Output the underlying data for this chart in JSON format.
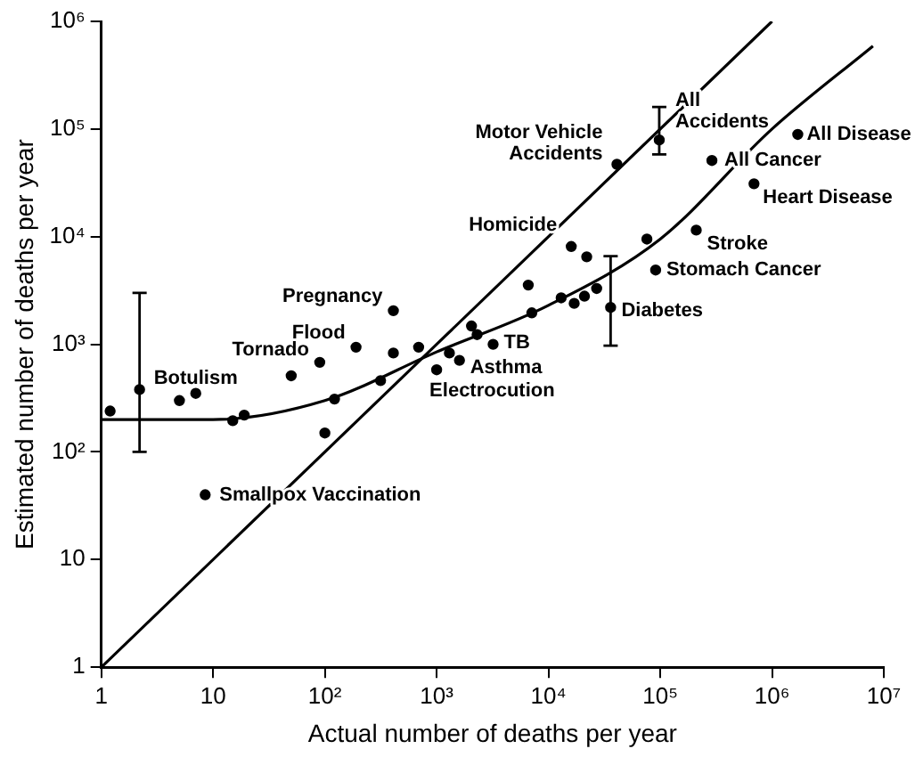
{
  "chart_data": {
    "type": "scatter",
    "xlabel": "Actual number of deaths per year",
    "ylabel": "Estimated number of deaths per year",
    "log": "xy",
    "grid": false,
    "legend": false,
    "marker": "circle",
    "xlim": [
      1,
      10000000
    ],
    "ylim": [
      1,
      1000000
    ],
    "xticks": [
      1,
      10,
      {
        "value": 100,
        "label": "10²"
      },
      {
        "value": 1000,
        "label": "10³"
      },
      {
        "value": 10000,
        "label": "10⁴"
      },
      {
        "value": 100000,
        "label": "10⁵"
      },
      {
        "value": 1000000,
        "label": "10⁶"
      },
      {
        "value": 10000000,
        "label": "10⁷"
      }
    ],
    "yticks": [
      1,
      10,
      {
        "value": 100,
        "label": "10²"
      },
      {
        "value": 1000,
        "label": "10³"
      },
      {
        "value": 10000,
        "label": "10⁴"
      },
      {
        "value": 100000,
        "label": "10⁵"
      },
      {
        "value": 1000000,
        "label": "10⁶"
      }
    ],
    "series": [
      {
        "type": "scatter",
        "color": "#000000",
        "x": [
          1.2,
          2.2,
          5,
          7,
          8.5,
          15,
          19,
          50,
          90,
          100,
          122,
          190,
          315,
          410,
          410,
          690,
          1000,
          1300,
          1600,
          2050,
          2300,
          3200,
          6600,
          7100,
          13000,
          16000,
          17000,
          21000,
          22000,
          27000,
          36000,
          41000,
          76000,
          91000,
          98000,
          210000,
          290000,
          690000,
          1700000
        ],
        "values": [
          240,
          380,
          300,
          350,
          40,
          195,
          220,
          510,
          680,
          150,
          310,
          940,
          460,
          2050,
          830,
          940,
          580,
          830,
          710,
          1480,
          1230,
          1000,
          3550,
          1960,
          2700,
          8100,
          2400,
          2800,
          6500,
          3300,
          2200,
          47000,
          9500,
          4900,
          79000,
          11500,
          51000,
          31000,
          89000
        ],
        "errors": [
          null,
          [
            100,
            3000
          ],
          null,
          null,
          null,
          null,
          null,
          null,
          null,
          null,
          null,
          null,
          null,
          null,
          null,
          null,
          null,
          null,
          null,
          null,
          null,
          null,
          null,
          null,
          null,
          null,
          null,
          null,
          null,
          null,
          [
            970,
            6600
          ],
          null,
          null,
          null,
          [
            58000,
            160000
          ],
          null,
          null,
          null,
          null
        ]
      },
      {
        "type": "line",
        "color": "#000000",
        "marker": "none",
        "x": [
          1,
          1000000
        ],
        "values": [
          1,
          1000000
        ]
      },
      {
        "type": "line",
        "color": "#000000",
        "marker": "none",
        "x": [
          1,
          10,
          100,
          1000,
          10000,
          100000,
          1000000,
          8000000
        ],
        "values": [
          200,
          200,
          300,
          850,
          2300,
          9500,
          100000,
          590000
        ]
      }
    ],
    "annotations": [
      {
        "text": "Botulism",
        "x": 2.2,
        "y": 380
      },
      {
        "text": "Smallpox Vaccination",
        "x": 8.5,
        "y": 40
      },
      {
        "text": "Tornado",
        "x": 90,
        "y": 680
      },
      {
        "text": "Flood",
        "x": 190,
        "y": 940
      },
      {
        "text": "Pregnancy",
        "x": 410,
        "y": 2050
      },
      {
        "text": "Electrocution",
        "x": 1000,
        "y": 580
      },
      {
        "text": "Asthma",
        "x": 1600,
        "y": 710
      },
      {
        "text": "TB",
        "x": 3200,
        "y": 1000
      },
      {
        "text": "Homicide",
        "x": 16000,
        "y": 8100
      },
      {
        "text": "Diabetes",
        "x": 36000,
        "y": 2200
      },
      {
        "text": "Motor Vehicle\nAccidents",
        "x": 41000,
        "y": 47000
      },
      {
        "text": "Stomach Cancer",
        "x": 91000,
        "y": 4900
      },
      {
        "text": "All\nAccidents",
        "x": 98000,
        "y": 79000
      },
      {
        "text": "Stroke",
        "x": 210000,
        "y": 11500
      },
      {
        "text": "All Cancer",
        "x": 290000,
        "y": 51000
      },
      {
        "text": "Heart Disease",
        "x": 690000,
        "y": 31000
      },
      {
        "text": "All Disease",
        "x": 1700000,
        "y": 89000
      }
    ]
  }
}
